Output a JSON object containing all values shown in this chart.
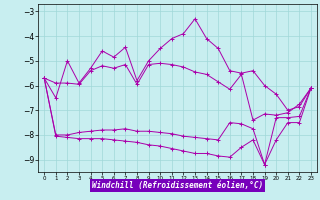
{
  "xlabel": "Windchill (Refroidissement éolien,°C)",
  "bg_color": "#c8eef0",
  "grid_color": "#a0d8d8",
  "line_color": "#aa00aa",
  "xlim": [
    -0.5,
    23.5
  ],
  "ylim": [
    -9.5,
    -2.7
  ],
  "yticks": [
    -9,
    -8,
    -7,
    -6,
    -5,
    -4,
    -3
  ],
  "xticks": [
    0,
    1,
    2,
    3,
    4,
    5,
    6,
    7,
    8,
    9,
    10,
    11,
    12,
    13,
    14,
    15,
    16,
    17,
    18,
    19,
    20,
    21,
    22,
    23
  ],
  "lines": [
    [
      [
        0,
        -5.7
      ],
      [
        1,
        -6.5
      ],
      [
        2,
        -5.0
      ],
      [
        3,
        -5.9
      ],
      [
        4,
        -5.3
      ],
      [
        5,
        -4.6
      ],
      [
        6,
        -4.85
      ],
      [
        7,
        -4.45
      ],
      [
        8,
        -5.8
      ],
      [
        9,
        -5.0
      ],
      [
        10,
        -4.5
      ],
      [
        11,
        -4.1
      ],
      [
        12,
        -3.9
      ],
      [
        13,
        -3.3
      ],
      [
        14,
        -4.1
      ],
      [
        15,
        -4.5
      ],
      [
        16,
        -5.4
      ],
      [
        17,
        -5.5
      ],
      [
        18,
        -5.4
      ],
      [
        19,
        -6.0
      ],
      [
        20,
        -6.35
      ],
      [
        21,
        -7.0
      ],
      [
        22,
        -6.85
      ],
      [
        23,
        -6.1
      ]
    ],
    [
      [
        0,
        -5.7
      ],
      [
        1,
        -5.9
      ],
      [
        2,
        -5.9
      ],
      [
        3,
        -5.95
      ],
      [
        4,
        -5.4
      ],
      [
        5,
        -5.2
      ],
      [
        6,
        -5.3
      ],
      [
        7,
        -5.15
      ],
      [
        8,
        -5.95
      ],
      [
        9,
        -5.15
      ],
      [
        10,
        -5.1
      ],
      [
        11,
        -5.15
      ],
      [
        12,
        -5.25
      ],
      [
        13,
        -5.45
      ],
      [
        14,
        -5.55
      ],
      [
        15,
        -5.85
      ],
      [
        16,
        -6.15
      ],
      [
        17,
        -5.55
      ],
      [
        18,
        -7.4
      ],
      [
        19,
        -7.15
      ],
      [
        20,
        -7.2
      ],
      [
        21,
        -7.1
      ],
      [
        22,
        -6.75
      ],
      [
        23,
        -6.1
      ]
    ],
    [
      [
        0,
        -5.7
      ],
      [
        1,
        -8.0
      ],
      [
        2,
        -8.0
      ],
      [
        3,
        -7.9
      ],
      [
        4,
        -7.85
      ],
      [
        5,
        -7.8
      ],
      [
        6,
        -7.8
      ],
      [
        7,
        -7.75
      ],
      [
        8,
        -7.85
      ],
      [
        9,
        -7.85
      ],
      [
        10,
        -7.9
      ],
      [
        11,
        -7.95
      ],
      [
        12,
        -8.05
      ],
      [
        13,
        -8.1
      ],
      [
        14,
        -8.15
      ],
      [
        15,
        -8.2
      ],
      [
        16,
        -7.5
      ],
      [
        17,
        -7.55
      ],
      [
        18,
        -7.75
      ],
      [
        19,
        -9.2
      ],
      [
        20,
        -7.3
      ],
      [
        21,
        -7.3
      ],
      [
        22,
        -7.25
      ],
      [
        23,
        -6.1
      ]
    ],
    [
      [
        0,
        -5.7
      ],
      [
        1,
        -8.05
      ],
      [
        2,
        -8.1
      ],
      [
        3,
        -8.15
      ],
      [
        4,
        -8.15
      ],
      [
        5,
        -8.15
      ],
      [
        6,
        -8.2
      ],
      [
        7,
        -8.25
      ],
      [
        8,
        -8.3
      ],
      [
        9,
        -8.4
      ],
      [
        10,
        -8.45
      ],
      [
        11,
        -8.55
      ],
      [
        12,
        -8.65
      ],
      [
        13,
        -8.75
      ],
      [
        14,
        -8.75
      ],
      [
        15,
        -8.85
      ],
      [
        16,
        -8.9
      ],
      [
        17,
        -8.5
      ],
      [
        18,
        -8.2
      ],
      [
        19,
        -9.2
      ],
      [
        20,
        -8.2
      ],
      [
        21,
        -7.5
      ],
      [
        22,
        -7.5
      ],
      [
        23,
        -6.1
      ]
    ]
  ]
}
